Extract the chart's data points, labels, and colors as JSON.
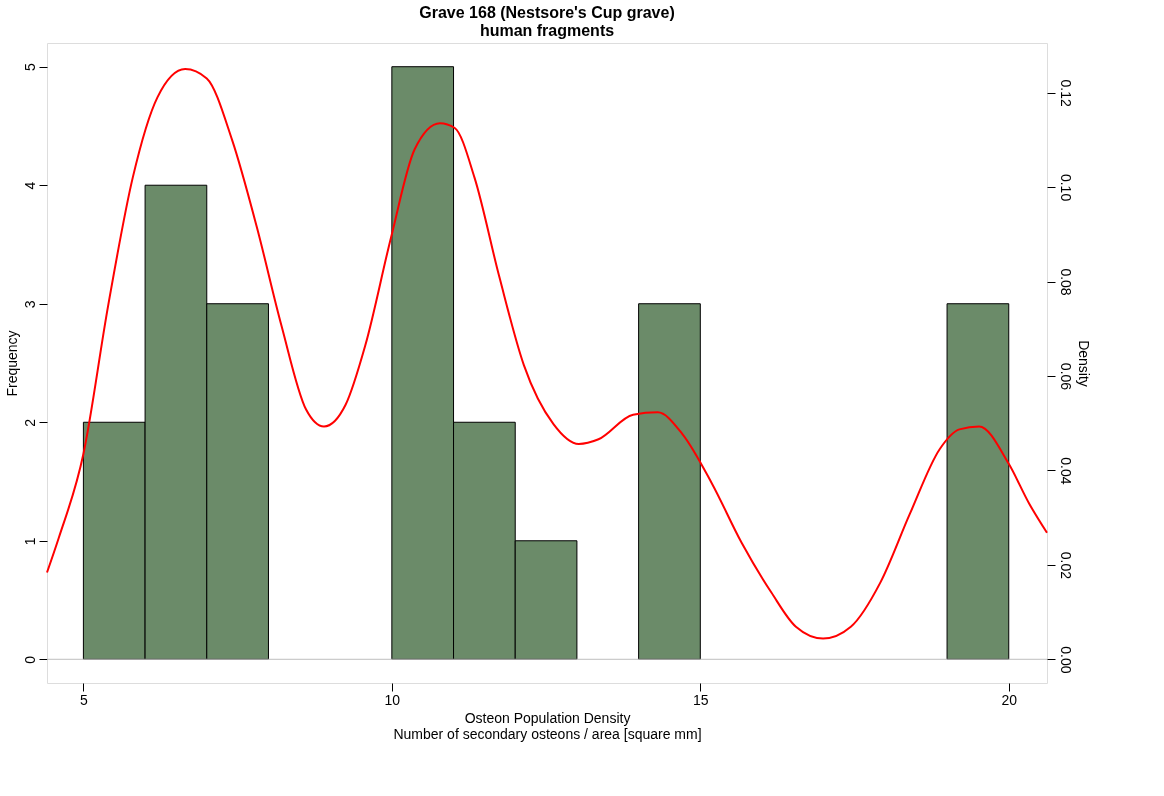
{
  "chart_data": {
    "type": "histogram",
    "title": "Grave 168 (Nestsore's Cup grave)",
    "subtitle": "human fragments",
    "xlabel": "Osteon Population Density\nNumber of secondary osteons / area [square mm]",
    "ylabel": "Frequency",
    "y2label": "Density",
    "bins": [
      5,
      6,
      7,
      8,
      9,
      10,
      11,
      12,
      13,
      14,
      15,
      16,
      17,
      18,
      19,
      20
    ],
    "values": [
      2,
      4,
      3,
      0,
      0,
      5,
      2,
      1,
      0,
      3,
      0,
      0,
      0,
      0,
      3
    ],
    "color": "#6b8b69",
    "series": [
      {
        "type": "line",
        "axis": "y2",
        "color": "#ff0000",
        "line_style": "solid",
        "x": [
          4.41,
          4.6,
          5.0,
          5.4,
          5.8,
          6.2,
          6.65,
          7.0,
          7.41,
          7.81,
          8.21,
          8.61,
          8.9,
          9.25,
          9.57,
          9.99,
          10.37,
          10.78,
          11.02,
          11.34,
          11.74,
          12.14,
          12.62,
          13.03,
          13.35,
          13.91,
          14.31,
          14.71,
          15.19,
          15.67,
          16.15,
          16.55,
          16.99,
          17.44,
          17.92,
          18.4,
          18.88,
          19.2,
          19.52,
          20.0,
          20.33,
          20.62
        ],
        "values": [
          0.0184,
          0.0257,
          0.0435,
          0.0748,
          0.102,
          0.119,
          0.125,
          0.123,
          0.11,
          0.0916,
          0.0707,
          0.0529,
          0.0493,
          0.0539,
          0.0665,
          0.0895,
          0.108,
          0.1135,
          0.1125,
          0.102,
          0.0811,
          0.0623,
          0.0498,
          0.0456,
          0.0466,
          0.0518,
          0.0523,
          0.0477,
          0.0372,
          0.0247,
          0.0142,
          0.0069,
          0.0044,
          0.0069,
          0.0163,
          0.0309,
          0.0445,
          0.0487,
          0.0493,
          0.0414,
          0.033,
          0.0268
        ]
      }
    ],
    "xlim": [
      4.41,
      20.62
    ],
    "xticks": [
      5,
      10,
      15,
      20
    ],
    "ylim": [
      -0.2,
      5.2
    ],
    "yticks": [
      0,
      1,
      2,
      3,
      4,
      5
    ],
    "y2lim": [
      -0.005,
      0.1305
    ],
    "y2ticks": [
      {
        "value": 0,
        "label": "0.00"
      },
      {
        "value": 0.02,
        "label": "0.02"
      },
      {
        "value": 0.04,
        "label": "0.04"
      },
      {
        "value": 0.06,
        "label": "0.06"
      },
      {
        "value": 0.08,
        "label": "0.08"
      },
      {
        "value": 0.1,
        "label": "0.10"
      },
      {
        "value": 0.12,
        "label": "0.12"
      }
    ],
    "ref_lines": [
      {
        "axis": "y",
        "value": 0,
        "color": "#bebebe"
      }
    ],
    "grid": false
  }
}
